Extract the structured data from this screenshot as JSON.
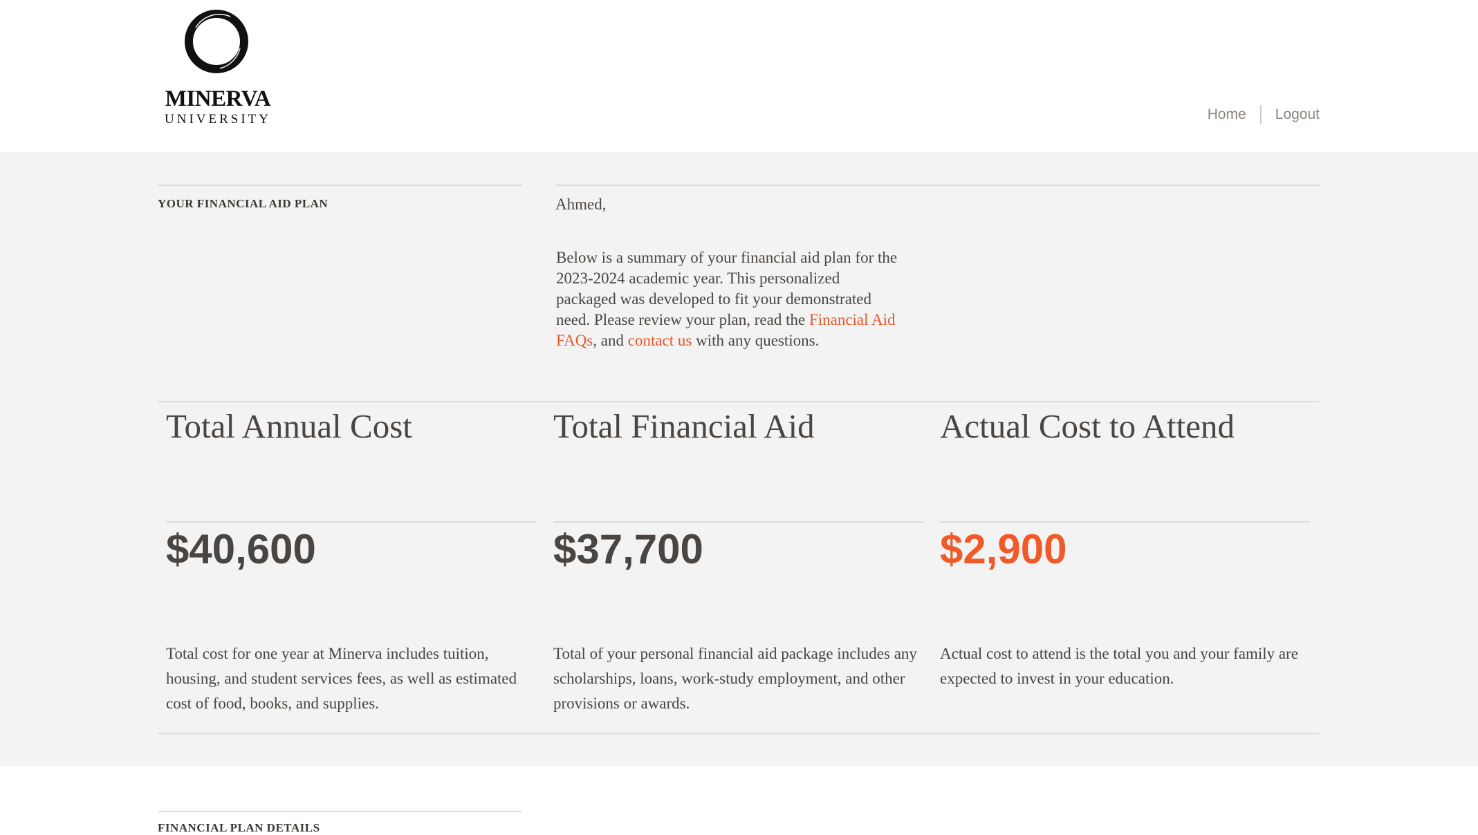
{
  "header": {
    "logo": {
      "name": "MINERVA",
      "sub": "UNIVERSITY"
    },
    "nav": [
      {
        "label": "Home"
      },
      {
        "label": "Logout"
      }
    ]
  },
  "intro": {
    "section_label": "YOUR FINANCIAL AID PLAN",
    "greeting": "Ahmed,",
    "text_1": "Below is a summary of your financial aid plan for the 2023-2024 academic year. This personalized packaged was developed to fit your demonstrated need. Please review your plan, read the ",
    "link_faq": "Financial Aid FAQs",
    "text_2": ", and ",
    "link_contact": "contact us",
    "text_3": " with any questions."
  },
  "summary": [
    {
      "title": "Total Annual Cost",
      "amount": "$40,600",
      "description": "Total cost for one year at Minerva includes tuition, housing, and student services fees, as well as estimated cost of food, books, and supplies."
    },
    {
      "title": "Total Financial Aid",
      "amount": "$37,700",
      "description": "Total of your personal financial aid package includes any scholarships, loans, work-study employment, and other provisions or awards."
    },
    {
      "title": "Actual Cost to Attend",
      "amount": "$2,900",
      "description": "Actual cost to attend is the total you and your family are expected to invest in your education."
    }
  ],
  "details": {
    "section_label": "FINANCIAL PLAN DETAILS"
  },
  "colors": {
    "accent": "#f05a28",
    "text": "#4a4541",
    "panel": "#f3f3f3"
  }
}
